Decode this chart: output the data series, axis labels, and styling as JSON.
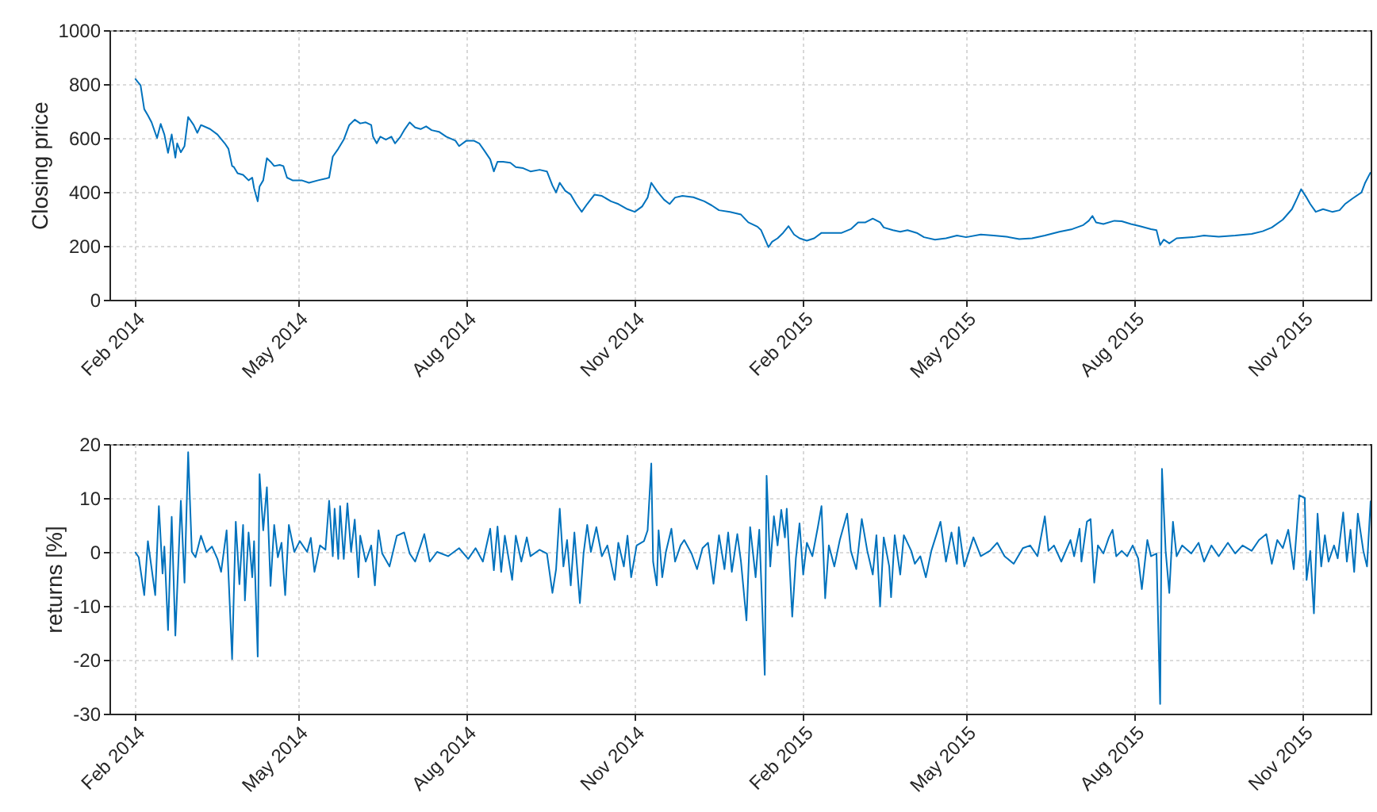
{
  "chart_data": [
    {
      "type": "line",
      "ylabel": "Closing price",
      "color": "#0072bd",
      "grid": true,
      "xlim": [
        "2014-01-18",
        "2015-12-08"
      ],
      "xticks": [
        {
          "value": "2014-02-01",
          "label": "Feb 2014"
        },
        {
          "value": "2014-05-01",
          "label": "May 2014"
        },
        {
          "value": "2014-08-01",
          "label": "Aug 2014"
        },
        {
          "value": "2014-11-01",
          "label": "Nov 2014"
        },
        {
          "value": "2015-02-01",
          "label": "Feb 2015"
        },
        {
          "value": "2015-05-01",
          "label": "May 2015"
        },
        {
          "value": "2015-08-01",
          "label": "Aug 2015"
        },
        {
          "value": "2015-11-01",
          "label": "Nov 2015"
        }
      ],
      "ylim": [
        0,
        1000
      ],
      "yticks": [
        0,
        200,
        400,
        600,
        800,
        1000
      ],
      "x": [
        "2014-02-01",
        "2014-02-04",
        "2014-02-06",
        "2014-02-08",
        "2014-02-10",
        "2014-02-13",
        "2014-02-15",
        "2014-02-17",
        "2014-02-19",
        "2014-02-21",
        "2014-02-23",
        "2014-02-24",
        "2014-02-26",
        "2014-02-28",
        "2014-03-02",
        "2014-03-05",
        "2014-03-07",
        "2014-03-09",
        "2014-03-14",
        "2014-03-18",
        "2014-03-22",
        "2014-03-24",
        "2014-03-26",
        "2014-03-27",
        "2014-03-29",
        "2014-04-01",
        "2014-04-04",
        "2014-04-06",
        "2014-04-07",
        "2014-04-09",
        "2014-04-10",
        "2014-04-12",
        "2014-04-14",
        "2014-04-16",
        "2014-04-18",
        "2014-04-21",
        "2014-04-23",
        "2014-04-25",
        "2014-04-28",
        "2014-05-03",
        "2014-05-07",
        "2014-05-12",
        "2014-05-16",
        "2014-05-18",
        "2014-05-20",
        "2014-05-23",
        "2014-05-26",
        "2014-05-29",
        "2014-06-01",
        "2014-06-04",
        "2014-06-07",
        "2014-06-10",
        "2014-06-11",
        "2014-06-13",
        "2014-06-15",
        "2014-06-18",
        "2014-06-21",
        "2014-06-23",
        "2014-06-26",
        "2014-06-28",
        "2014-07-01",
        "2014-07-04",
        "2014-07-07",
        "2014-07-10",
        "2014-07-13",
        "2014-07-17",
        "2014-07-21",
        "2014-07-26",
        "2014-07-28",
        "2014-08-01",
        "2014-08-05",
        "2014-08-08",
        "2014-08-11",
        "2014-08-14",
        "2014-08-16",
        "2014-08-18",
        "2014-08-21",
        "2014-08-25",
        "2014-08-28",
        "2014-09-01",
        "2014-09-05",
        "2014-09-10",
        "2014-09-14",
        "2014-09-17",
        "2014-09-19",
        "2014-09-21",
        "2014-09-24",
        "2014-09-27",
        "2014-09-30",
        "2014-10-03",
        "2014-10-06",
        "2014-10-10",
        "2014-10-14",
        "2014-10-19",
        "2014-10-23",
        "2014-10-28",
        "2014-11-01",
        "2014-11-05",
        "2014-11-08",
        "2014-11-10",
        "2014-11-13",
        "2014-11-17",
        "2014-11-20",
        "2014-11-23",
        "2014-11-27",
        "2014-12-03",
        "2014-12-09",
        "2014-12-13",
        "2014-12-17",
        "2014-12-23",
        "2014-12-29",
        "2015-01-02",
        "2015-01-07",
        "2015-01-09",
        "2015-01-13",
        "2015-01-15",
        "2015-01-18",
        "2015-01-21",
        "2015-01-24",
        "2015-01-27",
        "2015-01-30",
        "2015-02-03",
        "2015-02-07",
        "2015-02-11",
        "2015-02-16",
        "2015-02-22",
        "2015-02-27",
        "2015-03-03",
        "2015-03-07",
        "2015-03-11",
        "2015-03-15",
        "2015-03-17",
        "2015-03-22",
        "2015-03-26",
        "2015-03-30",
        "2015-04-04",
        "2015-04-08",
        "2015-04-14",
        "2015-04-20",
        "2015-04-26",
        "2015-05-01",
        "2015-05-09",
        "2015-05-16",
        "2015-05-23",
        "2015-05-30",
        "2015-06-06",
        "2015-06-13",
        "2015-06-21",
        "2015-06-28",
        "2015-07-04",
        "2015-07-07",
        "2015-07-09",
        "2015-07-11",
        "2015-07-15",
        "2015-07-21",
        "2015-07-25",
        "2015-07-30",
        "2015-08-04",
        "2015-08-10",
        "2015-08-13",
        "2015-08-15",
        "2015-08-17",
        "2015-08-20",
        "2015-08-24",
        "2015-09-02",
        "2015-09-08",
        "2015-09-16",
        "2015-09-25",
        "2015-10-04",
        "2015-10-10",
        "2015-10-15",
        "2015-10-21",
        "2015-10-26",
        "2015-10-29",
        "2015-10-31",
        "2015-11-03",
        "2015-11-05",
        "2015-11-08",
        "2015-11-12",
        "2015-11-17",
        "2015-11-21",
        "2015-11-24",
        "2015-11-28",
        "2015-12-03",
        "2015-12-05",
        "2015-12-08"
      ],
      "values": [
        820,
        795,
        707,
        684,
        658,
        600,
        652,
        613,
        545,
        613,
        527,
        580,
        547,
        570,
        678,
        648,
        619,
        648,
        633,
        613,
        580,
        560,
        496,
        492,
        469,
        463,
        443,
        453,
        414,
        365,
        420,
        443,
        525,
        512,
        496,
        500,
        496,
        453,
        443,
        443,
        434,
        443,
        449,
        453,
        531,
        560,
        594,
        648,
        668,
        654,
        658,
        648,
        605,
        580,
        605,
        594,
        605,
        580,
        605,
        629,
        658,
        639,
        633,
        643,
        629,
        623,
        605,
        590,
        570,
        590,
        590,
        580,
        551,
        521,
        476,
        512,
        512,
        508,
        492,
        488,
        476,
        482,
        476,
        424,
        398,
        434,
        404,
        390,
        355,
        326,
        355,
        390,
        385,
        365,
        355,
        336,
        326,
        346,
        379,
        434,
        404,
        371,
        355,
        379,
        385,
        380,
        365,
        350,
        332,
        326,
        316,
        287,
        271,
        258,
        195,
        215,
        228,
        248,
        273,
        242,
        228,
        219,
        228,
        248,
        248,
        248,
        262,
        287,
        287,
        301,
        287,
        268,
        258,
        252,
        258,
        248,
        232,
        223,
        228,
        238,
        232,
        242,
        238,
        234,
        225,
        228,
        238,
        252,
        262,
        277,
        293,
        311,
        287,
        281,
        293,
        291,
        281,
        273,
        262,
        258,
        203,
        223,
        209,
        228,
        232,
        238,
        234,
        238,
        244,
        254,
        268,
        297,
        336,
        379,
        410,
        379,
        355,
        326,
        336,
        326,
        332,
        355,
        375,
        398,
        434,
        473
      ]
    },
    {
      "type": "line",
      "ylabel": "returns [%]",
      "color": "#0072bd",
      "grid": true,
      "xlim": [
        "2014-01-18",
        "2015-12-08"
      ],
      "xticks": [
        {
          "value": "2014-02-01",
          "label": "Feb 2014"
        },
        {
          "value": "2014-05-01",
          "label": "May 2014"
        },
        {
          "value": "2014-08-01",
          "label": "Aug 2014"
        },
        {
          "value": "2014-11-01",
          "label": "Nov 2014"
        },
        {
          "value": "2015-02-01",
          "label": "Feb 2015"
        },
        {
          "value": "2015-05-01",
          "label": "May 2015"
        },
        {
          "value": "2015-08-01",
          "label": "Aug 2015"
        },
        {
          "value": "2015-11-01",
          "label": "Nov 2015"
        }
      ],
      "ylim": [
        -30,
        20
      ],
      "yticks": [
        -30,
        -20,
        -10,
        0,
        10,
        20
      ],
      "x": [
        "2014-02-01",
        "2014-02-03",
        "2014-02-06",
        "2014-02-08",
        "2014-02-10",
        "2014-02-12",
        "2014-02-14",
        "2014-02-16",
        "2014-02-17",
        "2014-02-19",
        "2014-02-21",
        "2014-02-23",
        "2014-02-26",
        "2014-02-28",
        "2014-03-02",
        "2014-03-04",
        "2014-03-06",
        "2014-03-09",
        "2014-03-12",
        "2014-03-15",
        "2014-03-18",
        "2014-03-20",
        "2014-03-23",
        "2014-03-26",
        "2014-03-28",
        "2014-03-30",
        "2014-04-01",
        "2014-04-02",
        "2014-04-04",
        "2014-04-06",
        "2014-04-07",
        "2014-04-09",
        "2014-04-10",
        "2014-04-12",
        "2014-04-14",
        "2014-04-16",
        "2014-04-18",
        "2014-04-20",
        "2014-04-22",
        "2014-04-24",
        "2014-04-26",
        "2014-04-29",
        "2014-05-02",
        "2014-05-06",
        "2014-05-08",
        "2014-05-10",
        "2014-05-13",
        "2014-05-16",
        "2014-05-18",
        "2014-05-20",
        "2014-05-21",
        "2014-05-23",
        "2014-05-24",
        "2014-05-26",
        "2014-05-28",
        "2014-05-30",
        "2014-06-01",
        "2014-06-03",
        "2014-06-04",
        "2014-06-07",
        "2014-06-10",
        "2014-06-12",
        "2014-06-14",
        "2014-06-16",
        "2014-06-20",
        "2014-06-24",
        "2014-06-28",
        "2014-07-01",
        "2014-07-04",
        "2014-07-07",
        "2014-07-09",
        "2014-07-12",
        "2014-07-16",
        "2014-07-22",
        "2014-07-28",
        "2014-08-02",
        "2014-08-06",
        "2014-08-10",
        "2014-08-14",
        "2014-08-16",
        "2014-08-18",
        "2014-08-20",
        "2014-08-22",
        "2014-08-26",
        "2014-08-28",
        "2014-08-31",
        "2014-09-03",
        "2014-09-05",
        "2014-09-10",
        "2014-09-14",
        "2014-09-17",
        "2014-09-19",
        "2014-09-21",
        "2014-09-23",
        "2014-09-25",
        "2014-09-27",
        "2014-09-29",
        "2014-10-02",
        "2014-10-04",
        "2014-10-06",
        "2014-10-08",
        "2014-10-11",
        "2014-10-14",
        "2014-10-17",
        "2014-10-21",
        "2014-10-23",
        "2014-10-26",
        "2014-10-28",
        "2014-10-30",
        "2014-11-02",
        "2014-11-06",
        "2014-11-08",
        "2014-11-10",
        "2014-11-11",
        "2014-11-13",
        "2014-11-14",
        "2014-11-16",
        "2014-11-18",
        "2014-11-21",
        "2014-11-23",
        "2014-11-26",
        "2014-11-28",
        "2014-12-02",
        "2014-12-05",
        "2014-12-08",
        "2014-12-11",
        "2014-12-14",
        "2014-12-17",
        "2014-12-20",
        "2014-12-22",
        "2014-12-24",
        "2014-12-27",
        "2014-12-29",
        "2015-01-01",
        "2015-01-03",
        "2015-01-06",
        "2015-01-08",
        "2015-01-11",
        "2015-01-12",
        "2015-01-14",
        "2015-01-16",
        "2015-01-18",
        "2015-01-20",
        "2015-01-22",
        "2015-01-23",
        "2015-01-26",
        "2015-01-28",
        "2015-01-30",
        "2015-02-01",
        "2015-02-03",
        "2015-02-06",
        "2015-02-09",
        "2015-02-11",
        "2015-02-13",
        "2015-02-15",
        "2015-02-18",
        "2015-02-21",
        "2015-02-25",
        "2015-02-27",
        "2015-03-02",
        "2015-03-05",
        "2015-03-08",
        "2015-03-11",
        "2015-03-13",
        "2015-03-15",
        "2015-03-17",
        "2015-03-20",
        "2015-03-21",
        "2015-03-23",
        "2015-03-26",
        "2015-03-28",
        "2015-04-01",
        "2015-04-03",
        "2015-04-06",
        "2015-04-09",
        "2015-04-12",
        "2015-04-17",
        "2015-04-20",
        "2015-04-23",
        "2015-04-26",
        "2015-04-27",
        "2015-04-30",
        "2015-05-05",
        "2015-05-09",
        "2015-05-14",
        "2015-05-18",
        "2015-05-22",
        "2015-05-27",
        "2015-06-01",
        "2015-06-05",
        "2015-06-09",
        "2015-06-13",
        "2015-06-15",
        "2015-06-18",
        "2015-06-22",
        "2015-06-27",
        "2015-06-29",
        "2015-07-02",
        "2015-07-03",
        "2015-07-06",
        "2015-07-08",
        "2015-07-10",
        "2015-07-12",
        "2015-07-15",
        "2015-07-18",
        "2015-07-20",
        "2015-07-22",
        "2015-07-25",
        "2015-07-28",
        "2015-07-31",
        "2015-08-03",
        "2015-08-05",
        "2015-08-08",
        "2015-08-10",
        "2015-08-13",
        "2015-08-15",
        "2015-08-16",
        "2015-08-18",
        "2015-08-20",
        "2015-08-22",
        "2015-08-24",
        "2015-08-27",
        "2015-09-01",
        "2015-09-05",
        "2015-09-08",
        "2015-09-12",
        "2015-09-16",
        "2015-09-21",
        "2015-09-25",
        "2015-09-29",
        "2015-10-04",
        "2015-10-08",
        "2015-10-12",
        "2015-10-15",
        "2015-10-18",
        "2015-10-21",
        "2015-10-24",
        "2015-10-27",
        "2015-10-30",
        "2015-11-02",
        "2015-11-03",
        "2015-11-05",
        "2015-11-07",
        "2015-11-09",
        "2015-11-11",
        "2015-11-13",
        "2015-11-15",
        "2015-11-18",
        "2015-11-20",
        "2015-11-23",
        "2015-11-25",
        "2015-11-27",
        "2015-11-29",
        "2015-12-01",
        "2015-12-04",
        "2015-12-06",
        "2015-12-08"
      ],
      "values": [
        0,
        -1,
        -8,
        2,
        -3,
        -8,
        8.5,
        -4,
        1,
        -14.5,
        6.5,
        -15.5,
        9.5,
        -5.7,
        18.5,
        0,
        -1,
        3,
        0,
        1,
        -1.3,
        -3.7,
        4,
        -19.9,
        5.6,
        -6,
        5,
        -9,
        3.6,
        -4.7,
        2,
        -19.4,
        14.4,
        4,
        12,
        -6.3,
        5,
        -1,
        1.7,
        -8,
        5,
        0,
        2,
        0,
        2.6,
        -3.7,
        1.2,
        0.4,
        9.5,
        -0.8,
        8,
        -1.3,
        8.5,
        -1.3,
        9,
        0,
        6,
        -4.7,
        3,
        -1.8,
        1.2,
        -6.2,
        4,
        -0.3,
        -2.7,
        3,
        3.6,
        -0.3,
        -1.8,
        1.2,
        3.3,
        -1.8,
        0,
        -0.8,
        0.7,
        -1.3,
        0.7,
        -1.8,
        4.3,
        -3.4,
        4.7,
        -3.7,
        3,
        -5.2,
        3,
        -1.8,
        2.7,
        -0.8,
        0.4,
        -0.3,
        -7.6,
        -3.2,
        8,
        -2.7,
        2.2,
        -6.2,
        3.6,
        -9.5,
        -0.3,
        5,
        0,
        4.6,
        -0.8,
        1.2,
        -5.2,
        1.7,
        -2.7,
        3,
        -4.7,
        1.2,
        2,
        4,
        16.4,
        -1.8,
        -6.2,
        4,
        -4.7,
        0,
        4.3,
        -1.8,
        1.2,
        2.2,
        -0.3,
        -3.2,
        0.7,
        1.7,
        -5.9,
        3.1,
        -3.2,
        3.6,
        -3.7,
        3.3,
        -1.8,
        -12.7,
        4.6,
        -4.7,
        4.1,
        -22.8,
        14.1,
        -2.7,
        6.6,
        1.2,
        7.8,
        2.7,
        8,
        -12,
        -1.2,
        5.3,
        -4.2,
        1.7,
        -0.8,
        4.6,
        8.5,
        -8.6,
        1.2,
        -2.7,
        2.2,
        7.1,
        0.2,
        -3.2,
        6.1,
        0.2,
        -4.2,
        3.1,
        -10.1,
        2.7,
        -2.7,
        -8.4,
        3.1,
        -4.2,
        3.1,
        0.2,
        -2.2,
        -0.8,
        -4.7,
        0.2,
        5.6,
        -1.8,
        3.6,
        -2.2,
        4.6,
        -2.7,
        2.7,
        -0.8,
        0.2,
        1.7,
        -0.8,
        -2.2,
        0.7,
        1.2,
        -0.8,
        6.6,
        0.2,
        1.2,
        -1.8,
        2.2,
        -0.8,
        4.3,
        -1.8,
        5.6,
        6.1,
        -5.7,
        1.2,
        -0.3,
        2.7,
        4.1,
        -0.8,
        0.2,
        -0.8,
        1.2,
        -1.2,
        -6.9,
        2.2,
        -0.8,
        -0.3,
        -28.2,
        15.4,
        0.2,
        -7.6,
        5.6,
        -0.8,
        1.2,
        -0.3,
        1.7,
        -1.8,
        1.2,
        -0.8,
        1.7,
        -0.3,
        1.2,
        0.2,
        2.2,
        3.3,
        -2.2,
        2.2,
        0.7,
        4.1,
        -3.2,
        10.5,
        10,
        -5.2,
        0.2,
        -11.4,
        7.1,
        -2.7,
        3.1,
        -1.8,
        1.2,
        -1.2,
        7.3,
        -1.8,
        4.1,
        -3.7,
        7.1,
        0.2,
        -2.7,
        9.5
      ]
    }
  ]
}
